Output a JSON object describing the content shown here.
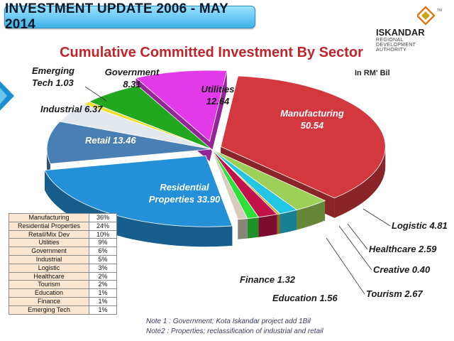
{
  "header": {
    "title": "INVESTMENT UPDATE 2006 - MAY 2014"
  },
  "logo": {
    "name": "ISKANDAR",
    "sub": [
      "REGIONAL",
      "DEVELOPMENT",
      "AUTHORITY"
    ],
    "tm": "TM"
  },
  "colors": {
    "title_bg": "#5cc6f2",
    "chart_title": "#c0252b"
  },
  "chart_data": {
    "type": "pie",
    "title": "Cumulative Committed Investment By Sector",
    "unit_label": "In RM' Bil",
    "slices": [
      {
        "label": "Manufacturing",
        "value": 50.54,
        "color": "#d2383e",
        "exploded": true,
        "label_lines": [
          "Manufacturing",
          "50.54"
        ]
      },
      {
        "label": "Logistic",
        "value": 4.81,
        "color": "#9ecf56",
        "label_lines": [
          "Logistic 4.81"
        ]
      },
      {
        "label": "Healthcare",
        "value": 2.59,
        "color": "#22c6e2",
        "label_lines": [
          "Healthcare 2.59"
        ]
      },
      {
        "label": "Creative",
        "value": 0.4,
        "color": "#e0a21e",
        "label_lines": [
          "Creative 0.40"
        ]
      },
      {
        "label": "Tourism",
        "value": 2.67,
        "color": "#c2124a",
        "label_lines": [
          "Tourism 2.67"
        ]
      },
      {
        "label": "Education",
        "value": 1.56,
        "color": "#2ee03a",
        "label_lines": [
          "Education  1.56"
        ]
      },
      {
        "label": "Finance",
        "value": 1.32,
        "color": "#d6cbbd",
        "label_lines": [
          "Finance 1.32"
        ]
      },
      {
        "label": "Residential Properties",
        "value": 33.9,
        "color": "#2490d8",
        "exploded": true,
        "label_lines": [
          "Residential",
          "Properties 33.90"
        ]
      },
      {
        "label": "Retail",
        "value": 13.46,
        "color": "#4a7fb3",
        "label_lines": [
          "Retail 13.46"
        ]
      },
      {
        "label": "Industrial",
        "value": 6.37,
        "color": "#e2e8ee",
        "label_lines": [
          "Industrial 6.37"
        ]
      },
      {
        "label": "Emerging Tech",
        "value": 1.03,
        "color": "#ece02a",
        "label_lines": [
          "Emerging",
          "Tech 1.03"
        ]
      },
      {
        "label": "Government",
        "value": 8.31,
        "color": "#22a81e",
        "label_lines": [
          "Government",
          "8.31"
        ]
      },
      {
        "label": "Utilities",
        "value": 12.64,
        "color": "#e23ae8",
        "exploded": true,
        "label_lines": [
          "Utilities",
          "12.64"
        ]
      }
    ]
  },
  "table": {
    "rows": [
      {
        "sector": "Manufacturing",
        "pct": "36%"
      },
      {
        "sector": "Residential Properties",
        "pct": "24%"
      },
      {
        "sector": "Retail/Mix Dev",
        "pct": "10%"
      },
      {
        "sector": "Utilities",
        "pct": "9%"
      },
      {
        "sector": "Government",
        "pct": "6%"
      },
      {
        "sector": "Industrial",
        "pct": "5%"
      },
      {
        "sector": "Logistic",
        "pct": "3%"
      },
      {
        "sector": "Healthcare",
        "pct": "2%"
      },
      {
        "sector": "Tourism",
        "pct": "2%"
      },
      {
        "sector": "Education",
        "pct": "1%"
      },
      {
        "sector": "Finance",
        "pct": "1%"
      },
      {
        "sector": "Emerging Tech",
        "pct": "1%"
      }
    ]
  },
  "notes": [
    "Note 1 : Government; Kota Iskandar project add 1Bil",
    "Note2 :  Properties; reclassification of industrial and retail"
  ]
}
